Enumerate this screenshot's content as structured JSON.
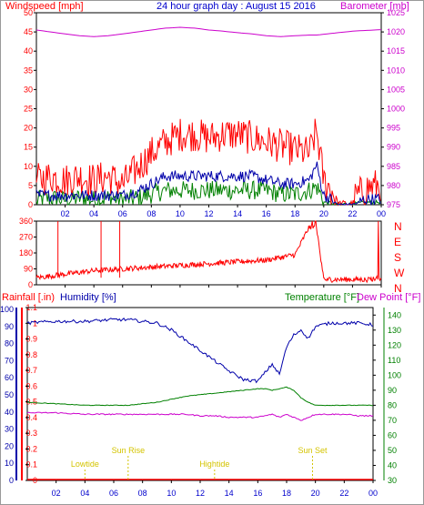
{
  "page": {
    "title": "24 hour graph day : August 15 2016"
  },
  "colors": {
    "wind": "#ff0000",
    "wind_gust": "#ff0000",
    "wind_avg": "#0000aa",
    "wind_min": "#008000",
    "barometer": "#cc00cc",
    "direction": "#ff0000",
    "rainfall": "#ff0000",
    "humidity": "#0000aa",
    "temperature": "#008000",
    "dewpoint": "#cc00cc",
    "sun": "#d4c400",
    "frame": "#000000"
  },
  "chart_data": [
    {
      "type": "line",
      "panel": "wind-barometer",
      "left_label": "Windspeed [mph]",
      "right_label": "Barometer [mb]",
      "x_ticks": [
        "02",
        "04",
        "06",
        "08",
        "10",
        "12",
        "14",
        "16",
        "18",
        "20",
        "22",
        "00"
      ],
      "left_ticks": [
        "0",
        "5",
        "10",
        "15",
        "20",
        "25",
        "30",
        "35",
        "40",
        "45",
        "50"
      ],
      "right_ticks": [
        "975",
        "980",
        "985",
        "990",
        "995",
        "1000",
        "1005",
        "1010",
        "1015",
        "1020",
        "1025"
      ],
      "ylim_left": [
        0,
        50
      ],
      "ylim_right": [
        975,
        1025
      ],
      "x": [
        0,
        1,
        2,
        3,
        4,
        5,
        6,
        7,
        8,
        9,
        10,
        11,
        12,
        13,
        14,
        15,
        16,
        17,
        18,
        19,
        19.5,
        20,
        21,
        22,
        23,
        24
      ],
      "series": [
        {
          "name": "gust",
          "values": [
            5,
            6,
            5,
            6,
            5,
            6,
            4,
            8,
            12,
            15,
            17,
            17,
            16,
            17,
            17,
            16,
            15,
            14,
            13,
            12,
            18,
            5,
            0,
            0,
            3,
            4
          ]
        },
        {
          "name": "average",
          "values": [
            2,
            2,
            2,
            2,
            2,
            2,
            2,
            3,
            5,
            7,
            7,
            7,
            7,
            7,
            7,
            7,
            6,
            5,
            5,
            6,
            10,
            2,
            0,
            0,
            1,
            1
          ]
        },
        {
          "name": "minimum",
          "values": [
            0.5,
            1,
            0.5,
            1,
            0.5,
            1,
            0.5,
            1,
            2,
            3,
            3,
            3,
            3,
            3,
            3,
            3,
            3,
            2,
            2,
            3,
            4,
            0.5,
            0,
            0,
            0.5,
            0.5
          ]
        },
        {
          "name": "barometer",
          "values": [
            1020.5,
            1020,
            1019.5,
            1019,
            1018.8,
            1019,
            1019.5,
            1020,
            1020.5,
            1021,
            1021.2,
            1021,
            1020.5,
            1020.2,
            1019.8,
            1019.5,
            1019,
            1018.8,
            1019,
            1019.2,
            1019.2,
            1019.4,
            1019.8,
            1020.2,
            1020.4,
            1020.6
          ]
        }
      ]
    },
    {
      "type": "scatter",
      "panel": "wind-direction",
      "left_ticks": [
        "0",
        "90",
        "180",
        "270",
        "360"
      ],
      "right_ticks": [
        "N",
        "W",
        "S",
        "E",
        "N"
      ],
      "ylim": [
        0,
        360
      ],
      "x_ticks": [
        "02",
        "04",
        "06",
        "08",
        "10",
        "12",
        "14",
        "16",
        "18",
        "20",
        "22",
        "00"
      ],
      "x": [
        0,
        2,
        4,
        6,
        8,
        10,
        12,
        14,
        16,
        18,
        19,
        19.5,
        20,
        21,
        22,
        23,
        24
      ],
      "series": [
        {
          "name": "direction",
          "values": [
            40,
            60,
            80,
            90,
            100,
            110,
            120,
            130,
            140,
            170,
            330,
            320,
            30,
            30,
            30,
            30,
            40
          ]
        }
      ]
    },
    {
      "type": "line",
      "panel": "rain-humidity-temperature",
      "labels": {
        "rainfall": "Rainfall [.in)",
        "humidity": "Humidity [%]",
        "temperature": "Temperature [°F]",
        "dewpoint": "Dew Point [°F]"
      },
      "rain_ticks": [
        "0",
        "0.1",
        "0.2",
        "0.3",
        "0.4",
        "0.5",
        "0.6",
        "0.7",
        "0.8",
        "0.9",
        "1",
        "1.1"
      ],
      "humidity_ticks": [
        "0",
        "10",
        "20",
        "30",
        "40",
        "50",
        "60",
        "70",
        "80",
        "90",
        "100"
      ],
      "temp_ticks": [
        "30",
        "40",
        "50",
        "60",
        "70",
        "80",
        "90",
        "100",
        "110",
        "120",
        "130",
        "140"
      ],
      "x_ticks": [
        "02",
        "04",
        "06",
        "08",
        "10",
        "12",
        "14",
        "16",
        "18",
        "20",
        "22",
        "00"
      ],
      "ylim_humidity": [
        0,
        100
      ],
      "ylim_temp": [
        30,
        145
      ],
      "x": [
        0,
        2,
        4,
        6,
        7,
        8,
        9,
        10,
        11,
        12,
        13,
        14,
        15,
        16,
        16.5,
        17,
        17.5,
        18,
        18.5,
        19,
        19.5,
        20,
        21,
        22,
        23,
        24
      ],
      "series": [
        {
          "name": "humidity",
          "values": [
            92,
            93,
            93,
            94,
            94,
            93,
            92,
            88,
            82,
            76,
            70,
            64,
            59,
            58,
            63,
            68,
            62,
            78,
            85,
            88,
            83,
            90,
            92,
            92,
            92,
            91
          ]
        },
        {
          "name": "temperature",
          "values": [
            82,
            81,
            80,
            80,
            80,
            81,
            82,
            84,
            86,
            87,
            88,
            89,
            90,
            91,
            91,
            90,
            91,
            92,
            90,
            85,
            82,
            80,
            80,
            80,
            80,
            80
          ]
        },
        {
          "name": "dewpoint",
          "values": [
            75,
            75,
            74,
            74,
            74,
            74,
            74,
            74,
            74,
            73,
            73,
            72,
            72,
            72,
            73,
            74,
            72,
            74,
            72,
            70,
            72,
            74,
            74,
            74,
            73,
            73
          ]
        },
        {
          "name": "rainfall",
          "values": [
            0,
            0,
            0,
            0,
            0,
            0,
            0,
            0,
            0,
            0,
            0,
            0,
            0,
            0,
            0,
            0,
            0,
            0,
            0,
            0,
            0,
            0,
            0,
            0,
            0,
            0
          ]
        }
      ],
      "sun_events": [
        {
          "label": "Lowtide",
          "x": 4
        },
        {
          "label": "Sun Rise",
          "x": 7
        },
        {
          "label": "Hightide",
          "x": 13
        },
        {
          "label": "Sun Set",
          "x": 19.8
        }
      ]
    }
  ]
}
